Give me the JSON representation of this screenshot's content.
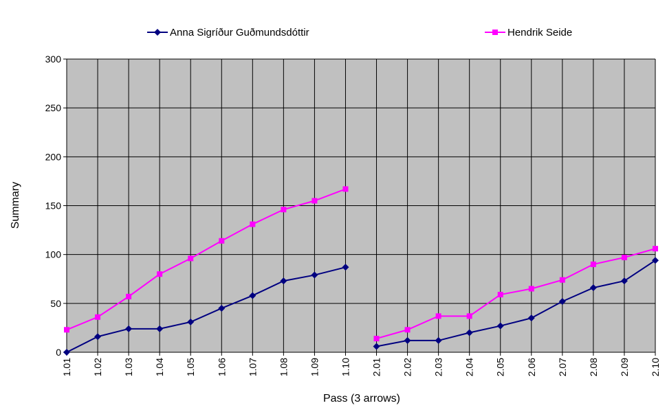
{
  "chart_data": {
    "type": "line",
    "title": "",
    "xlabel": "Pass (3 arrows)",
    "ylabel": "Summary",
    "ylim": [
      0,
      300
    ],
    "yticks": [
      "0",
      "50",
      "100",
      "150",
      "200",
      "250",
      "300"
    ],
    "grid": true,
    "legend_position": "top",
    "plot_background": "#c0c0c0",
    "categories": [
      "1.01",
      "1.02",
      "1.03",
      "1.04",
      "1.05",
      "1.06",
      "1.07",
      "1.08",
      "1.09",
      "1.10",
      "2.01",
      "2.02",
      "2.03",
      "2.04",
      "2.05",
      "2.06",
      "2.07",
      "2.08",
      "2.09",
      "2.10"
    ],
    "series": [
      {
        "name": "Anna Sigríður Guðmundsdóttir",
        "color": "#000080",
        "marker": "diamond",
        "values": [
          0,
          16,
          24,
          24,
          31,
          45,
          58,
          73,
          79,
          87,
          6,
          12,
          12,
          20,
          27,
          35,
          52,
          66,
          73,
          94
        ]
      },
      {
        "name": "Hendrik Seide",
        "color": "#ff00ff",
        "marker": "square",
        "values": [
          23,
          36,
          57,
          80,
          96,
          114,
          131,
          146,
          155,
          167,
          14,
          23,
          37,
          37,
          59,
          65,
          74,
          90,
          97,
          106
        ]
      }
    ],
    "segments": [
      [
        0,
        9
      ],
      [
        10,
        19
      ]
    ]
  }
}
